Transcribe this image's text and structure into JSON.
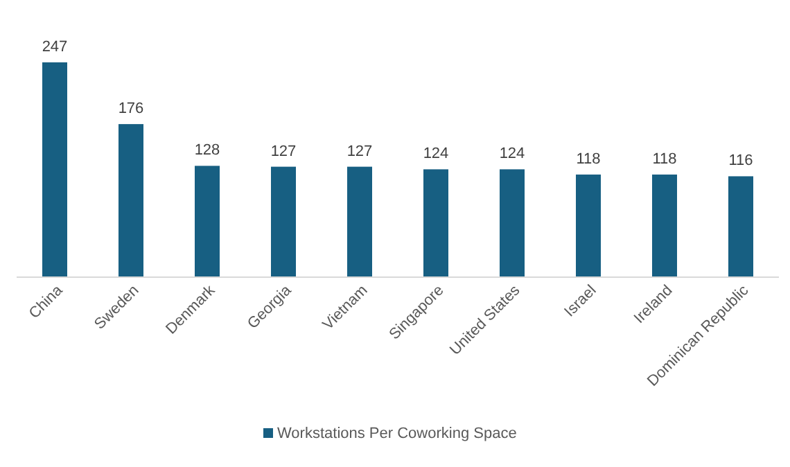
{
  "chart_data": {
    "type": "bar",
    "categories": [
      "China",
      "Sweden",
      "Denmark",
      "Georgia",
      "Vietnam",
      "Singapore",
      "United States",
      "Israel",
      "Ireland",
      "Dominican Republic"
    ],
    "series": [
      {
        "name": "Workstations Per Coworking Space",
        "color": "#175f82",
        "values": [
          247,
          176,
          128,
          127,
          127,
          124,
          124,
          118,
          118,
          116
        ]
      }
    ],
    "data_labels": true,
    "legend": "bottom"
  }
}
